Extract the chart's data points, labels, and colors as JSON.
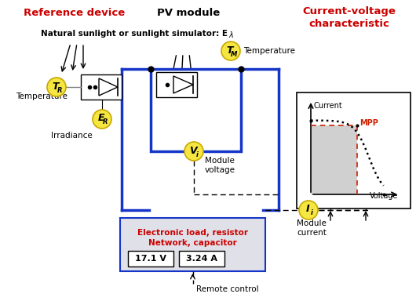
{
  "title_ref": "Reference device",
  "title_pv": "PV module",
  "title_cv": "Current-voltage\ncharacteristic",
  "sunlight_text": "Natural sunlight or sunlight simulator: E",
  "sunlight_sub": "λ",
  "temp_label": "Temperature",
  "irradiance_label": "Irradiance",
  "module_voltage_label": "Module\nvoltage",
  "module_current_label": "Module\ncurrent",
  "remote_control_label": "Remote control",
  "elec_load_line1": "Electronic load, resistor",
  "elec_load_line2": "Network, capacitor",
  "display_v": "17.1 V",
  "display_a": "3.24 A",
  "mpp_label": "MPP",
  "current_label": "Current",
  "voltage_label": "Voltage",
  "bg_color": "#ffffff",
  "red_color": "#cc0000",
  "blue_color": "#1535c8",
  "yellow_fill": "#f5e642",
  "yellow_edge": "#c8a800",
  "gray_fill": "#d0d0d0",
  "red_mpp": "#cc2200",
  "elec_bg": "#e0e0e8"
}
